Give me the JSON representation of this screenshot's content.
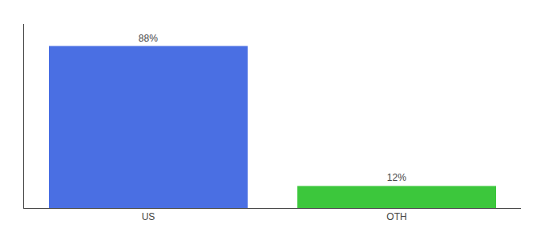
{
  "chart_data": {
    "type": "bar",
    "categories": [
      "US",
      "OTH"
    ],
    "values": [
      88,
      12
    ],
    "value_labels": [
      "88%",
      "12%"
    ],
    "colors": [
      "#4A6FE3",
      "#3CC73C"
    ],
    "ylim": [
      0,
      100
    ],
    "data_labels": true,
    "tick_labels": "x",
    "grid": false
  }
}
